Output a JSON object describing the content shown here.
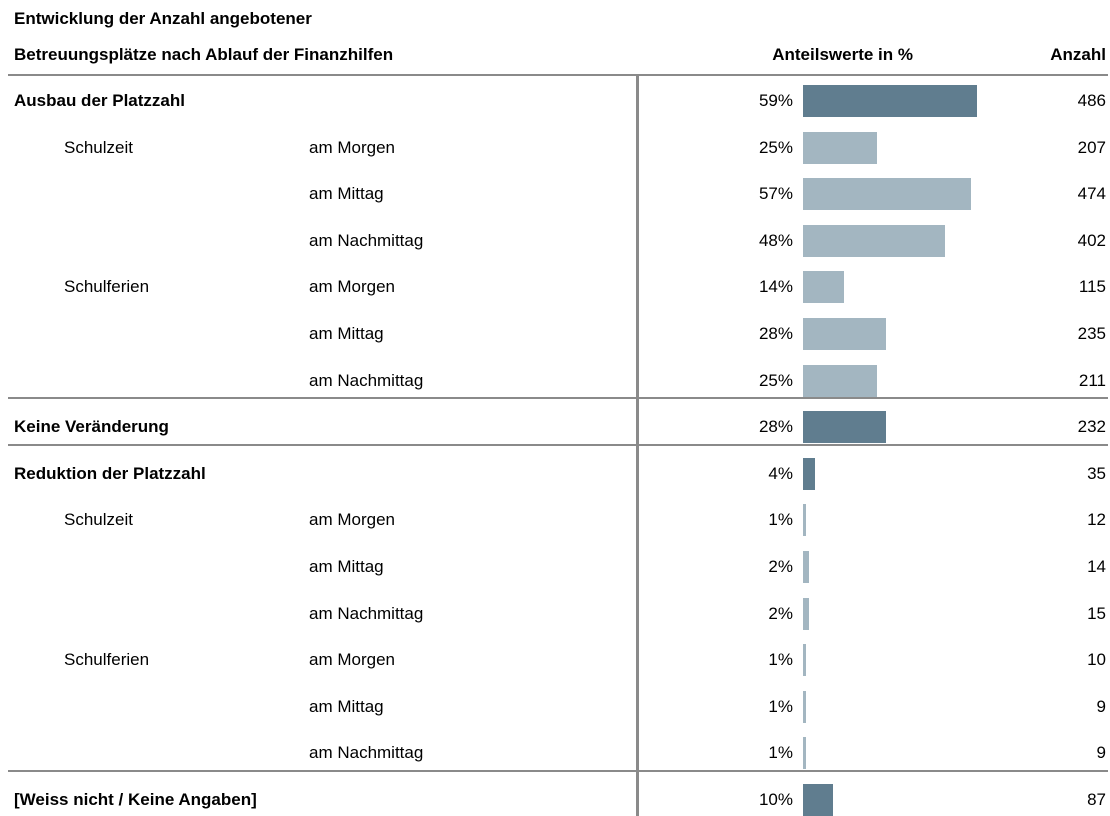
{
  "title": [
    "Entwicklung der Anzahl angebotener",
    "Betreuungsplätze nach Ablauf der Finanzhilfen"
  ],
  "headers": {
    "percent": "Anteilswerte in %",
    "count": "Anzahl"
  },
  "colors": {
    "main": "#607d8f",
    "sub": "#a3b6c1"
  },
  "rows": [
    {
      "label": "Ausbau der Platzzahl",
      "value": 59,
      "value_label": "59%",
      "count": 486
    },
    {
      "group": "Schulzeit",
      "sub": "am Morgen",
      "value": 25,
      "value_label": "25%",
      "count": 207
    },
    {
      "sub": "am Mittag",
      "value": 57,
      "value_label": "57%",
      "count": 474
    },
    {
      "sub": "am Nachmittag",
      "value": 48,
      "value_label": "48%",
      "count": 402
    },
    {
      "group": "Schulferien",
      "sub": "am Morgen",
      "value": 14,
      "value_label": "14%",
      "count": 115
    },
    {
      "sub": "am Mittag",
      "value": 28,
      "value_label": "28%",
      "count": 235
    },
    {
      "sub": "am Nachmittag",
      "value": 25,
      "value_label": "25%",
      "count": 211
    },
    {
      "label": "Keine Veränderung",
      "value": 28,
      "value_label": "28%",
      "count": 232
    },
    {
      "label": "Reduktion der Platzzahl",
      "value": 4,
      "value_label": "4%",
      "count": 35
    },
    {
      "group": "Schulzeit",
      "sub": "am Morgen",
      "value": 1,
      "value_label": "1%",
      "count": 12
    },
    {
      "sub": "am Mittag",
      "value": 2,
      "value_label": "2%",
      "count": 14
    },
    {
      "sub": "am Nachmittag",
      "value": 2,
      "value_label": "2%",
      "count": 15
    },
    {
      "group": "Schulferien",
      "sub": "am Morgen",
      "value": 1,
      "value_label": "1%",
      "count": 10
    },
    {
      "sub": "am Mittag",
      "value": 1,
      "value_label": "1%",
      "count": 9
    },
    {
      "sub": "am Nachmittag",
      "value": 1,
      "value_label": "1%",
      "count": 9
    },
    {
      "label": "[Weiss nicht / Keine Angaben]",
      "value": 10,
      "value_label": "10%",
      "count": 87
    }
  ]
}
